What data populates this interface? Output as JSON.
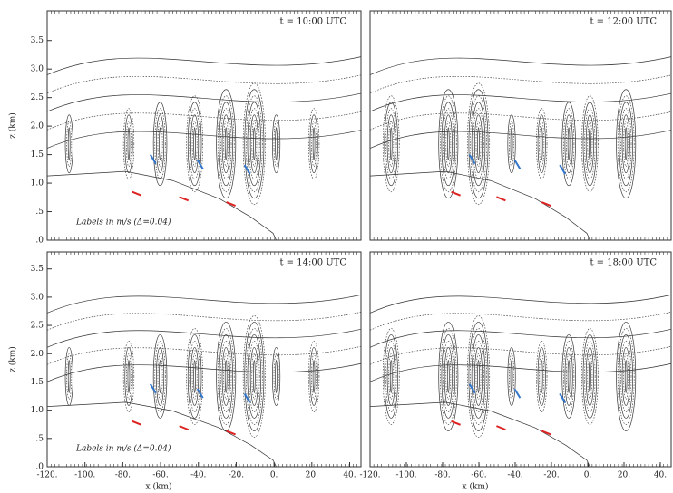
{
  "chart_data": [
    {
      "type": "contour",
      "title": "t = 10:00 UTC",
      "annotation": "Labels in  m/s (Δ=0.04)",
      "ylabel": "z (km)",
      "xlim": [
        -120,
        46
      ],
      "ylim": [
        0,
        4.02
      ],
      "yticks": [
        {
          "value": 0,
          "label": ".0"
        },
        {
          "value": 0.5,
          "label": ".5"
        },
        {
          "value": 1,
          "label": "1.0"
        },
        {
          "value": 1.5,
          "label": "1.5"
        },
        {
          "value": 2,
          "label": "2.0"
        },
        {
          "value": 2.5,
          "label": "2.5"
        },
        {
          "value": 3,
          "label": "3.0"
        },
        {
          "value": 3.5,
          "label": "3.5"
        }
      ]
    },
    {
      "type": "contour",
      "title": "t = 12:00 UTC",
      "xlim": [
        -120,
        46
      ],
      "ylim": [
        0,
        4.02
      ]
    },
    {
      "type": "contour",
      "title": "t = 14:00 UTC",
      "annotation": "Labels in  m/s (Δ=0.04)",
      "ylabel": "z (km)",
      "xlabel": "x (km)",
      "xlim": [
        -120,
        46
      ],
      "ylim": [
        0,
        3.8
      ],
      "yticks": [
        {
          "value": 0,
          "label": ".0"
        },
        {
          "value": 0.5,
          "label": ".5"
        },
        {
          "value": 1,
          "label": "1.0"
        },
        {
          "value": 1.5,
          "label": "1.5"
        },
        {
          "value": 2,
          "label": "2.0"
        },
        {
          "value": 2.5,
          "label": "2.5"
        },
        {
          "value": 3,
          "label": "3.0"
        },
        {
          "value": 3.5,
          "label": "3.5"
        }
      ],
      "xticks": [
        {
          "value": -120,
          "label": "-120."
        },
        {
          "value": -100,
          "label": "-100."
        },
        {
          "value": -80,
          "label": "-80."
        },
        {
          "value": -60,
          "label": "-60."
        },
        {
          "value": -40,
          "label": "-40."
        },
        {
          "value": -20,
          "label": "-20."
        },
        {
          "value": 0,
          "label": "0."
        },
        {
          "value": 20,
          "label": "20."
        },
        {
          "value": 40,
          "label": "40."
        }
      ]
    },
    {
      "type": "contour",
      "title": "t = 18:00 UTC",
      "xlabel": "x (km)",
      "xlim": [
        -120,
        46
      ],
      "ylim": [
        0,
        3.8
      ],
      "xticks": [
        {
          "value": -120,
          "label": "-120."
        },
        {
          "value": -100,
          "label": "-100."
        },
        {
          "value": -80,
          "label": "-80."
        },
        {
          "value": -60,
          "label": "-60."
        },
        {
          "value": -40,
          "label": "-40."
        },
        {
          "value": -20,
          "label": "-20."
        },
        {
          "value": 0,
          "label": "0."
        },
        {
          "value": 20,
          "label": "20."
        },
        {
          "value": 40,
          "label": "40."
        }
      ]
    }
  ]
}
